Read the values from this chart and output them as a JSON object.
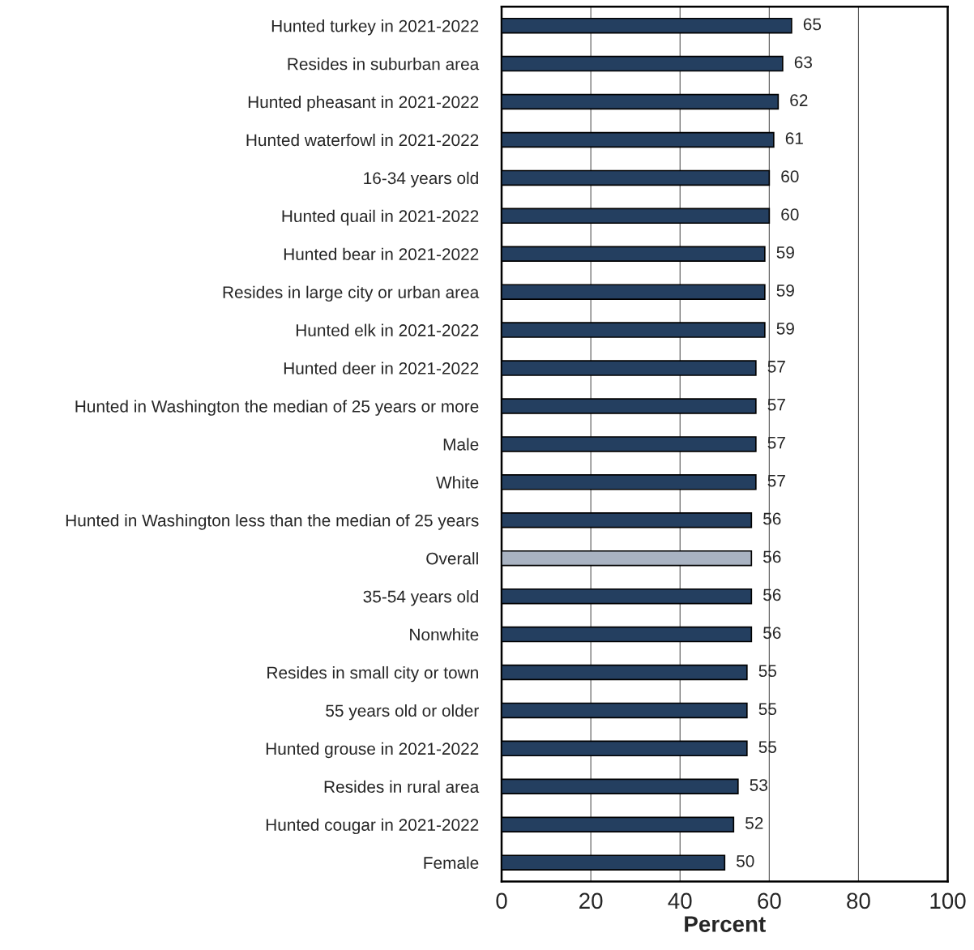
{
  "chart_data": {
    "type": "bar",
    "orientation": "horizontal",
    "xlabel": "Percent",
    "categories": [
      "Hunted turkey in 2021-2022",
      "Resides in suburban area",
      "Hunted pheasant in 2021-2022",
      "Hunted waterfowl in 2021-2022",
      "16-34 years old",
      "Hunted quail in 2021-2022",
      "Hunted bear in 2021-2022",
      "Resides in large city or urban area",
      "Hunted elk in 2021-2022",
      "Hunted deer in 2021-2022",
      "Hunted in Washington the median of 25 years or more",
      "Male",
      "White",
      "Hunted in Washington less than the median of 25 years",
      "Overall",
      "35-54 years old",
      "Nonwhite",
      "Resides in small city or town",
      "55 years old or older",
      "Hunted grouse in 2021-2022",
      "Resides in rural area",
      "Hunted cougar in 2021-2022",
      "Female"
    ],
    "values": [
      65,
      63,
      62,
      61,
      60,
      60,
      59,
      59,
      59,
      57,
      57,
      57,
      57,
      56,
      56,
      56,
      56,
      55,
      55,
      55,
      53,
      52,
      50
    ],
    "colors": [
      "#243f60",
      "#243f60",
      "#243f60",
      "#243f60",
      "#243f60",
      "#243f60",
      "#243f60",
      "#243f60",
      "#243f60",
      "#243f60",
      "#243f60",
      "#243f60",
      "#243f60",
      "#243f60",
      "#a9b3c2",
      "#243f60",
      "#243f60",
      "#243f60",
      "#243f60",
      "#243f60",
      "#243f60",
      "#243f60",
      "#243f60"
    ],
    "data_labels": true,
    "xlim": [
      0,
      100
    ],
    "xticks": [
      0,
      20,
      40,
      60,
      80,
      100
    ],
    "grid": "x",
    "legend": false
  }
}
